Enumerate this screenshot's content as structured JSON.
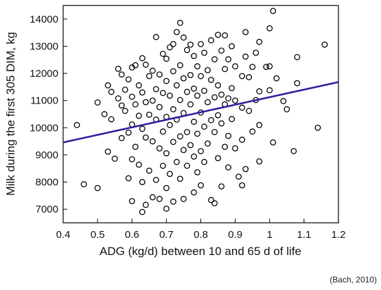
{
  "chart_data": {
    "type": "scatter",
    "xlabel": "ADG (kg/d) between 10 and 65 d of life",
    "ylabel": "Milk during the first 305 DIM, kg",
    "xlim": [
      0.4,
      1.2
    ],
    "ylim": [
      6500,
      14500
    ],
    "x_ticks": [
      "0.4",
      "0.5",
      "0.6",
      "0.7",
      "0.8",
      "0.9",
      "1",
      "1.1",
      "1.2"
    ],
    "y_ticks": [
      "7000",
      "8000",
      "9000",
      "10000",
      "11000",
      "12000",
      "13000",
      "14000"
    ],
    "grid": false,
    "marker": "open-circle",
    "trend_line": {
      "x": [
        0.4,
        1.2
      ],
      "y": [
        9460,
        11680
      ],
      "color": "#2b1f9e"
    },
    "points": [
      [
        0.44,
        10100
      ],
      [
        0.46,
        7920
      ],
      [
        0.5,
        10930
      ],
      [
        0.5,
        7780
      ],
      [
        0.52,
        10500
      ],
      [
        0.53,
        11560
      ],
      [
        0.53,
        9120
      ],
      [
        0.54,
        11320
      ],
      [
        0.54,
        10310
      ],
      [
        0.55,
        8860
      ],
      [
        0.56,
        11080
      ],
      [
        0.56,
        12170
      ],
      [
        0.57,
        11960
      ],
      [
        0.57,
        10820
      ],
      [
        0.57,
        9620
      ],
      [
        0.58,
        11400
      ],
      [
        0.58,
        10620
      ],
      [
        0.59,
        11780
      ],
      [
        0.59,
        9820
      ],
      [
        0.59,
        8140
      ],
      [
        0.6,
        12220
      ],
      [
        0.6,
        11140
      ],
      [
        0.6,
        10120
      ],
      [
        0.6,
        8840
      ],
      [
        0.6,
        7300
      ],
      [
        0.61,
        12300
      ],
      [
        0.61,
        10860
      ],
      [
        0.61,
        9300
      ],
      [
        0.62,
        11560
      ],
      [
        0.62,
        10440
      ],
      [
        0.62,
        8640
      ],
      [
        0.63,
        12560
      ],
      [
        0.63,
        11300
      ],
      [
        0.63,
        9960
      ],
      [
        0.63,
        8000
      ],
      [
        0.63,
        6900
      ],
      [
        0.64,
        12320
      ],
      [
        0.64,
        10940
      ],
      [
        0.64,
        9640
      ],
      [
        0.64,
        7160
      ],
      [
        0.65,
        11900
      ],
      [
        0.65,
        10480
      ],
      [
        0.65,
        8420
      ],
      [
        0.66,
        12100
      ],
      [
        0.66,
        11000
      ],
      [
        0.66,
        9500
      ],
      [
        0.66,
        7440
      ],
      [
        0.67,
        13340
      ],
      [
        0.67,
        11420
      ],
      [
        0.67,
        10300
      ],
      [
        0.67,
        8080
      ],
      [
        0.68,
        11960
      ],
      [
        0.68,
        10760
      ],
      [
        0.68,
        9240
      ],
      [
        0.68,
        7380
      ],
      [
        0.69,
        12720
      ],
      [
        0.69,
        11280
      ],
      [
        0.69,
        9860
      ],
      [
        0.69,
        8600
      ],
      [
        0.7,
        12540
      ],
      [
        0.7,
        11720
      ],
      [
        0.7,
        10400
      ],
      [
        0.7,
        9060
      ],
      [
        0.7,
        7780
      ],
      [
        0.7,
        7020
      ],
      [
        0.71,
        12960
      ],
      [
        0.71,
        11180
      ],
      [
        0.71,
        10100
      ],
      [
        0.71,
        8300
      ],
      [
        0.72,
        13080
      ],
      [
        0.72,
        12080
      ],
      [
        0.72,
        10680
      ],
      [
        0.72,
        9480
      ],
      [
        0.72,
        7280
      ],
      [
        0.73,
        13520
      ],
      [
        0.73,
        11560
      ],
      [
        0.73,
        10300
      ],
      [
        0.73,
        8740
      ],
      [
        0.74,
        13860
      ],
      [
        0.74,
        12300
      ],
      [
        0.74,
        11020
      ],
      [
        0.74,
        9680
      ],
      [
        0.74,
        8120
      ],
      [
        0.75,
        13320
      ],
      [
        0.75,
        11820
      ],
      [
        0.75,
        10540
      ],
      [
        0.75,
        9180
      ],
      [
        0.75,
        7380
      ],
      [
        0.76,
        12860
      ],
      [
        0.76,
        11320
      ],
      [
        0.76,
        9840
      ],
      [
        0.76,
        8600
      ],
      [
        0.77,
        13060
      ],
      [
        0.77,
        11940
      ],
      [
        0.77,
        10860
      ],
      [
        0.77,
        9360
      ],
      [
        0.78,
        12640
      ],
      [
        0.78,
        11440
      ],
      [
        0.78,
        10220
      ],
      [
        0.78,
        8940
      ],
      [
        0.78,
        7620
      ],
      [
        0.79,
        12260
      ],
      [
        0.79,
        11180
      ],
      [
        0.79,
        9780
      ],
      [
        0.79,
        8360
      ],
      [
        0.8,
        13080
      ],
      [
        0.8,
        11900
      ],
      [
        0.8,
        10560
      ],
      [
        0.8,
        9140
      ],
      [
        0.8,
        7880
      ],
      [
        0.81,
        12760
      ],
      [
        0.81,
        11360
      ],
      [
        0.81,
        10040
      ],
      [
        0.81,
        8740
      ],
      [
        0.82,
        12120
      ],
      [
        0.82,
        10940
      ],
      [
        0.82,
        9420
      ],
      [
        0.83,
        13220
      ],
      [
        0.83,
        11760
      ],
      [
        0.83,
        10280
      ],
      [
        0.83,
        7340
      ],
      [
        0.84,
        12520
      ],
      [
        0.84,
        11120
      ],
      [
        0.84,
        9840
      ],
      [
        0.84,
        7220
      ],
      [
        0.85,
        13420
      ],
      [
        0.85,
        11560
      ],
      [
        0.85,
        10460
      ],
      [
        0.85,
        8880
      ],
      [
        0.86,
        12840
      ],
      [
        0.86,
        11220
      ],
      [
        0.86,
        10160
      ],
      [
        0.86,
        7840
      ],
      [
        0.87,
        13400
      ],
      [
        0.87,
        12160
      ],
      [
        0.87,
        10860
      ],
      [
        0.87,
        9300
      ],
      [
        0.88,
        12520
      ],
      [
        0.88,
        11080
      ],
      [
        0.88,
        9700
      ],
      [
        0.88,
        8540
      ],
      [
        0.89,
        13000
      ],
      [
        0.89,
        11460
      ],
      [
        0.89,
        10320
      ],
      [
        0.9,
        12260
      ],
      [
        0.9,
        11000
      ],
      [
        0.9,
        9240
      ],
      [
        0.91,
        8200
      ],
      [
        0.92,
        11900
      ],
      [
        0.92,
        10740
      ],
      [
        0.92,
        9560
      ],
      [
        0.92,
        7880
      ],
      [
        0.93,
        13520
      ],
      [
        0.93,
        12620
      ],
      [
        0.93,
        8480
      ],
      [
        0.94,
        11860
      ],
      [
        0.94,
        10620
      ],
      [
        0.95,
        12240
      ],
      [
        0.95,
        9860
      ],
      [
        0.96,
        12760
      ],
      [
        0.96,
        11020
      ],
      [
        0.97,
        13160
      ],
      [
        0.97,
        11340
      ],
      [
        0.97,
        10100
      ],
      [
        0.97,
        8760
      ],
      [
        0.99,
        12240
      ],
      [
        1.0,
        13660
      ],
      [
        1.0,
        12260
      ],
      [
        1.0,
        11380
      ],
      [
        1.01,
        14300
      ],
      [
        1.01,
        9460
      ],
      [
        1.02,
        11820
      ],
      [
        1.04,
        10980
      ],
      [
        1.05,
        10680
      ],
      [
        1.07,
        9140
      ],
      [
        1.08,
        12600
      ],
      [
        1.08,
        11640
      ],
      [
        1.14,
        10000
      ],
      [
        1.16,
        13060
      ]
    ]
  },
  "source_note": "(Bach, 2010)"
}
